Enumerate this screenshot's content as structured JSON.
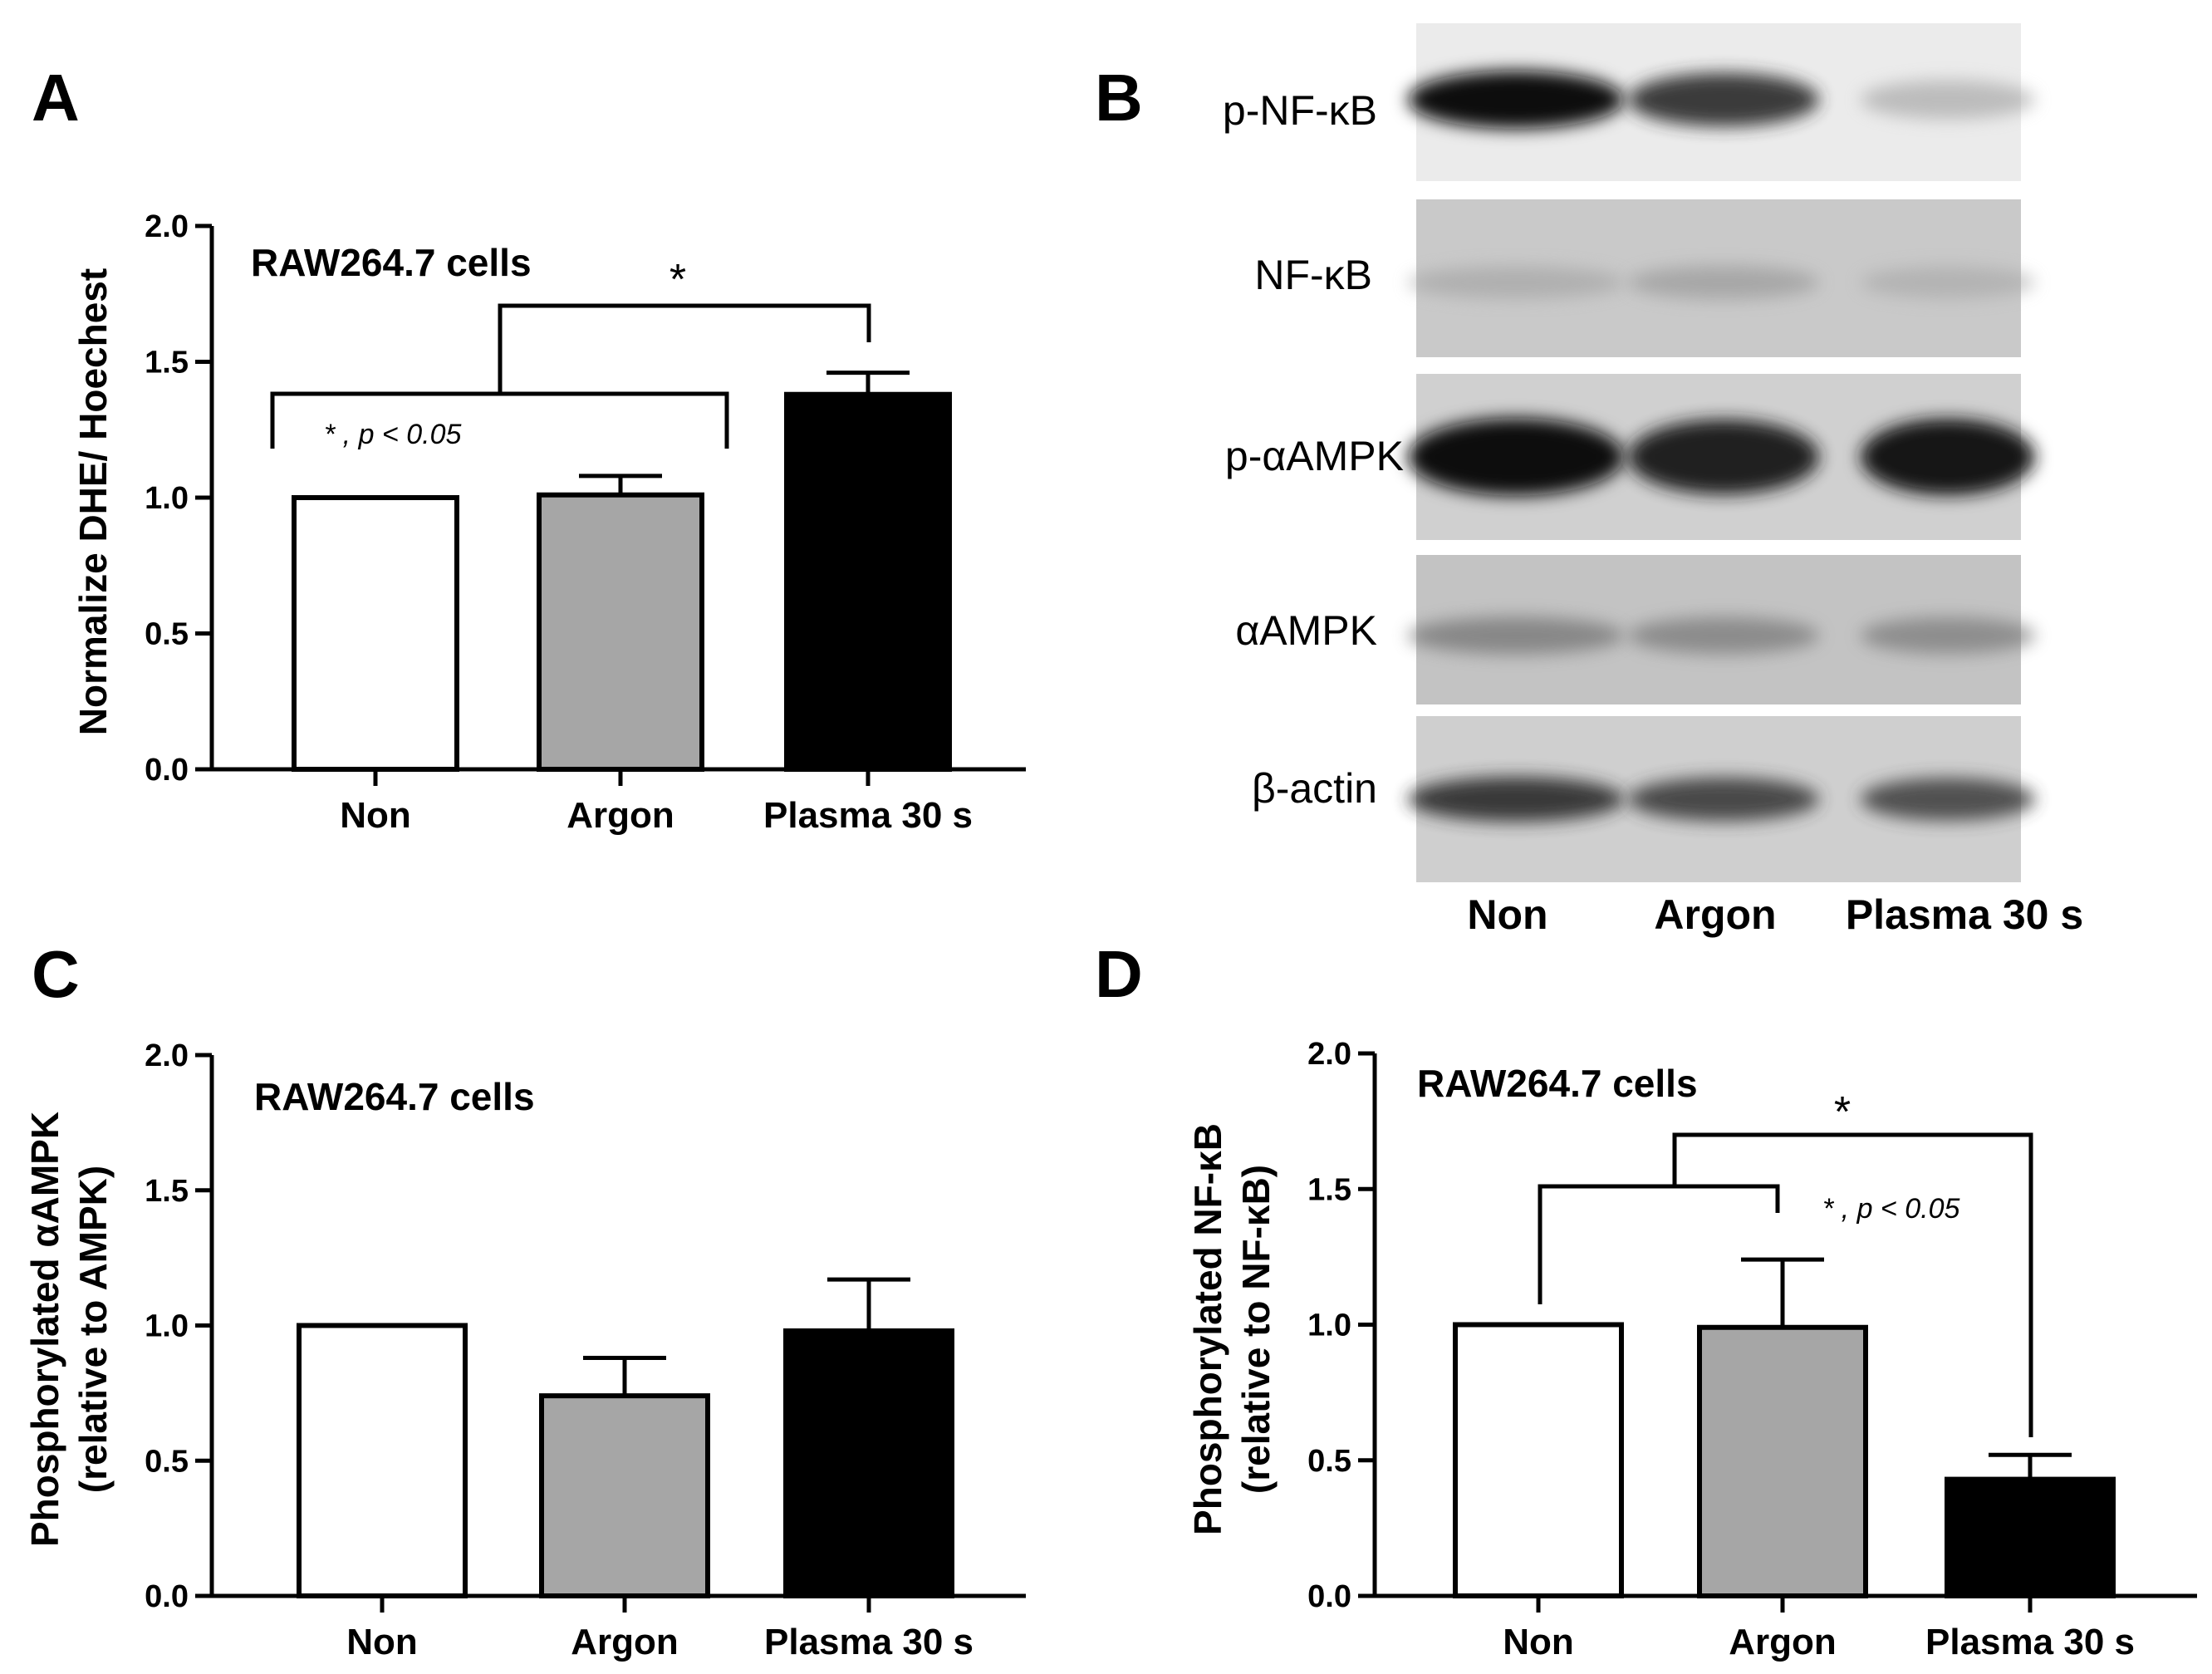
{
  "chart_data": [
    {
      "panel": "A",
      "type": "bar",
      "annotation": "RAW264.7 cells",
      "ylabel": "Normalize DHE/ Hoechest",
      "xlabel": "",
      "categories": [
        "Non",
        "Argon",
        "Plasma 30 s"
      ],
      "values": [
        1.0,
        1.01,
        1.38
      ],
      "errors": [
        0,
        0.07,
        0.08
      ],
      "colors": [
        "#ffffff",
        "#a6a6a6",
        "#000000"
      ],
      "ylim": [
        0,
        2.0
      ],
      "yticks": [
        "0.0",
        "0.5",
        "1.0",
        "1.5",
        "2.0"
      ],
      "significance": {
        "star": "*",
        "note": "* , p < 0.05"
      }
    },
    {
      "panel": "C",
      "type": "bar",
      "annotation": "RAW264.7 cells",
      "ylabel_line1": "Phosphorylated αAMPK",
      "ylabel_line2": "(relative to AMPK)",
      "xlabel": "",
      "categories": [
        "Non",
        "Argon",
        "Plasma 30 s"
      ],
      "values": [
        1.0,
        0.74,
        0.98
      ],
      "errors": [
        0,
        0.14,
        0.19
      ],
      "colors": [
        "#ffffff",
        "#a6a6a6",
        "#000000"
      ],
      "ylim": [
        0,
        2.0
      ],
      "yticks": [
        "0.0",
        "0.5",
        "1.0",
        "1.5",
        "2.0"
      ]
    },
    {
      "panel": "D",
      "type": "bar",
      "annotation": "RAW264.7 cells",
      "ylabel_line1": "Phosphorylated NF-κB",
      "ylabel_line2": "(relative to NF-κB)",
      "xlabel": "",
      "categories": [
        "Non",
        "Argon",
        "Plasma 30 s"
      ],
      "values": [
        1.0,
        0.99,
        0.43
      ],
      "errors": [
        0,
        0.25,
        0.09
      ],
      "colors": [
        "#ffffff",
        "#a6a6a6",
        "#000000"
      ],
      "ylim": [
        0,
        2.0
      ],
      "yticks": [
        "0.0",
        "0.5",
        "1.0",
        "1.5",
        "2.0"
      ],
      "significance": {
        "star": "*",
        "note": "* , p < 0.05"
      }
    }
  ],
  "blot": {
    "panel": "B",
    "rows": [
      "p-NF-κB",
      "NF-κB",
      "p-αAMPK",
      "αAMPK",
      "β-actin"
    ],
    "lanes": [
      "Non",
      "Argon",
      "Plasma 30 s"
    ],
    "band_intensity": [
      [
        0.95,
        0.8,
        0.3
      ],
      [
        0.3,
        0.35,
        0.28
      ],
      [
        0.95,
        0.88,
        0.92
      ],
      [
        0.5,
        0.48,
        0.47
      ],
      [
        0.8,
        0.75,
        0.72
      ]
    ]
  }
}
